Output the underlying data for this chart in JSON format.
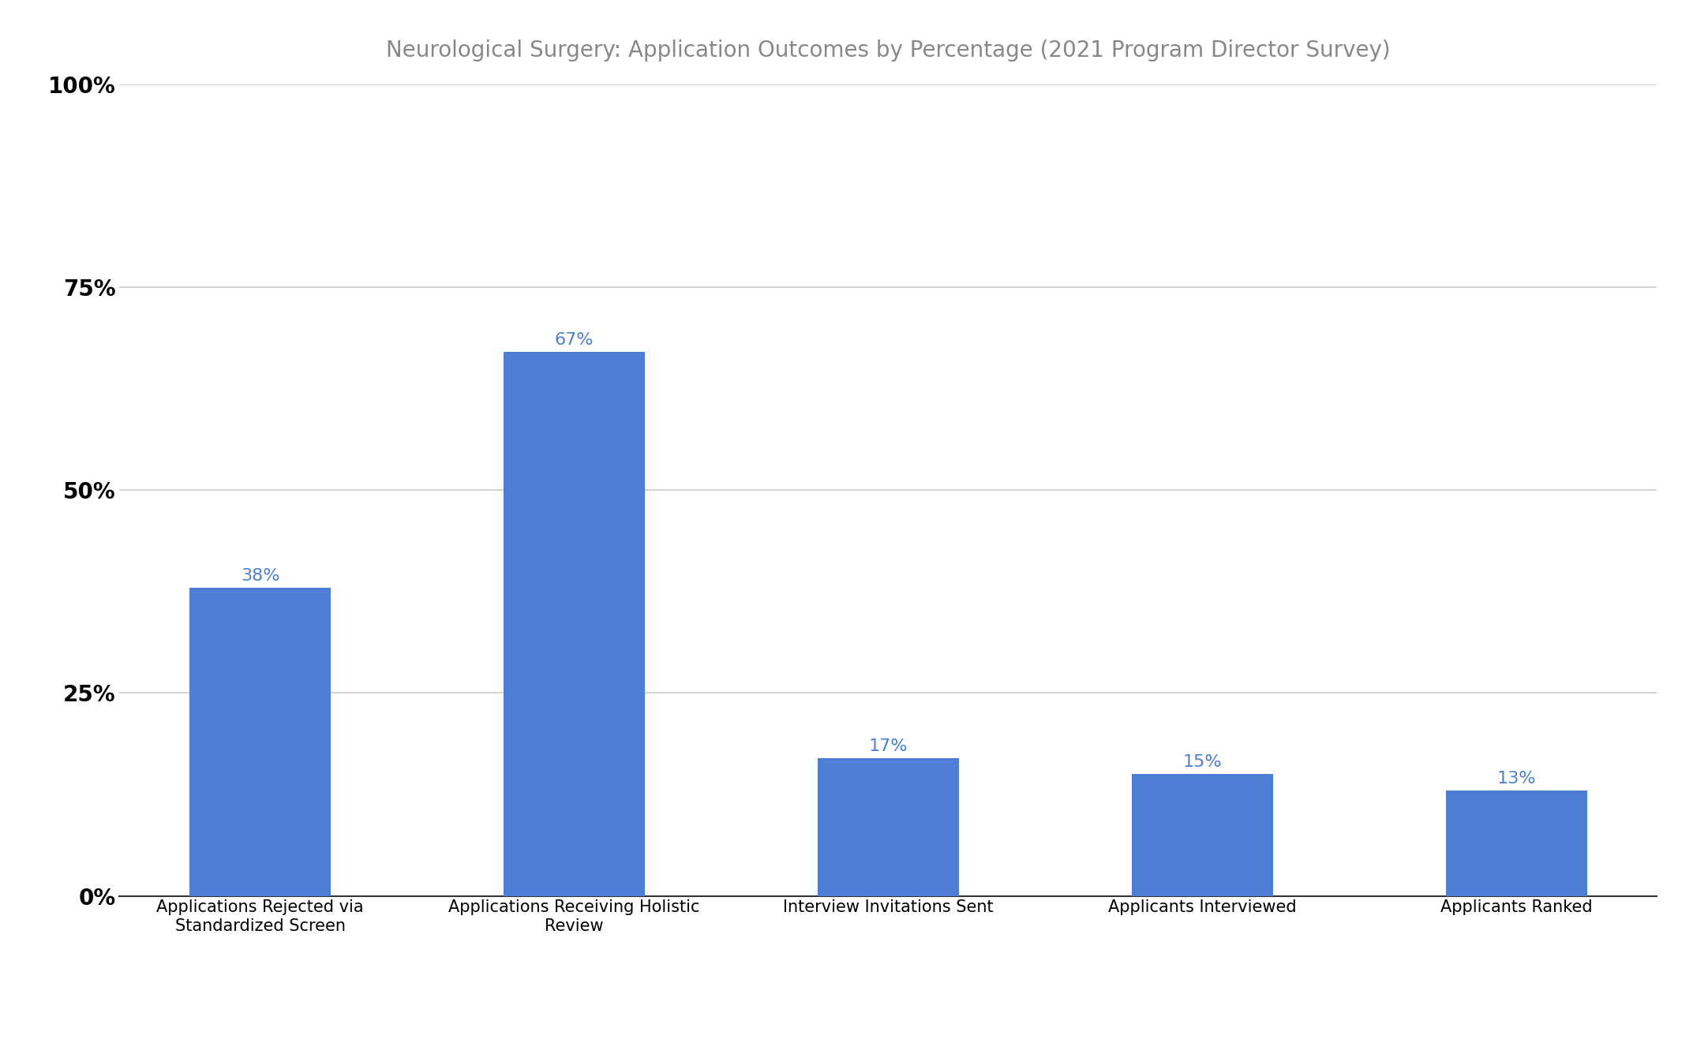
{
  "title": "Neurological Surgery: Application Outcomes by Percentage (2021 Program Director Survey)",
  "categories": [
    "Applications Rejected via\nStandardized Screen",
    "Applications Receiving Holistic\nReview",
    "Interview Invitations Sent",
    "Applicants Interviewed",
    "Applicants Ranked"
  ],
  "values": [
    38,
    67,
    17,
    15,
    13
  ],
  "bar_color": "#4C7FD4",
  "label_color": "#4C7FD4",
  "background_color": "#ffffff",
  "ytick_labels": [
    "0%",
    "25%",
    "50%",
    "75%",
    "100%"
  ],
  "ytick_values": [
    0,
    25,
    50,
    75,
    100
  ],
  "ylim": [
    0,
    100
  ],
  "title_fontsize": 20,
  "tick_fontsize": 20,
  "xtick_fontsize": 15,
  "bar_label_fontsize": 16,
  "grid_color": "#cccccc",
  "axis_color": "#333333",
  "bar_width": 0.45,
  "title_color": "#888888",
  "tick_label_color": "#000000"
}
